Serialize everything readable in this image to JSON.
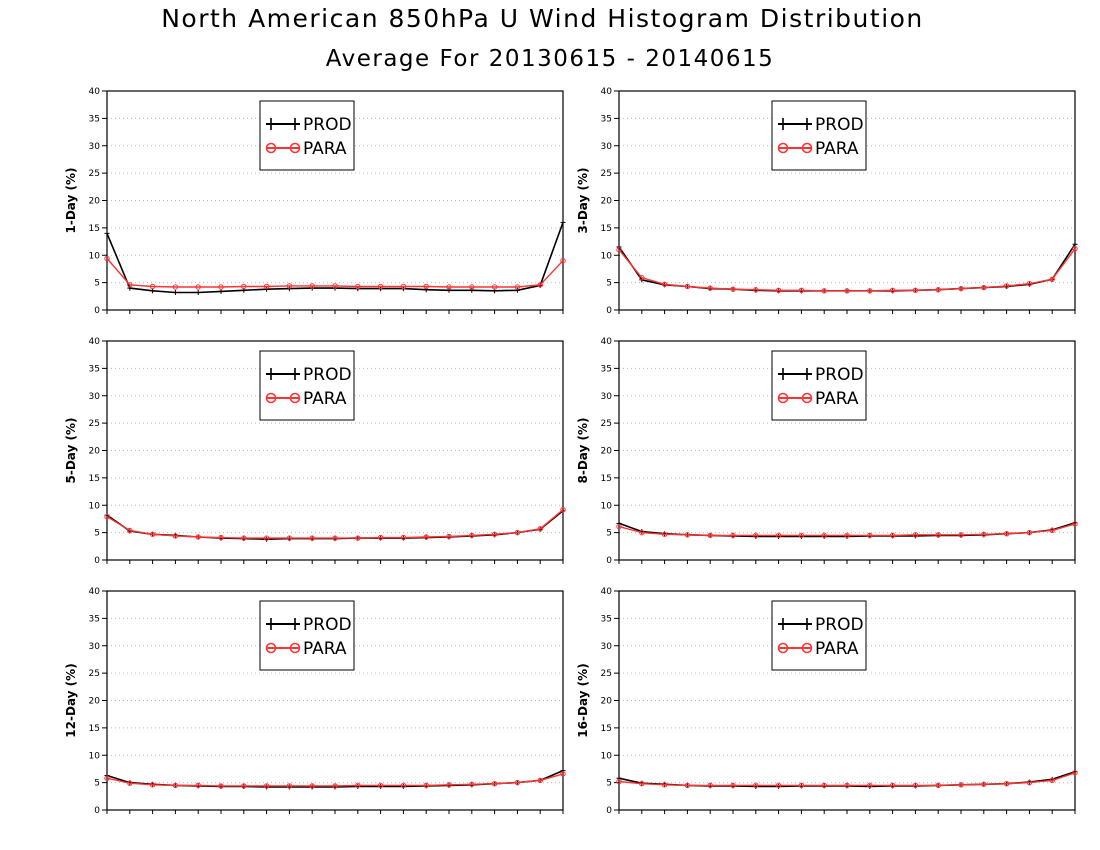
{
  "title": "North American 850hPa U Wind Histogram Distribution",
  "subtitle": "Average For 20130615 - 20140615",
  "colors": {
    "prod": "#000000",
    "para": "#ff3333",
    "grid": "#bbbbbb"
  },
  "chart_data": [
    {
      "type": "line",
      "ylabel": "1-Day (%)",
      "ylim": [
        0,
        40
      ],
      "yticks": [
        0,
        5,
        10,
        15,
        20,
        25,
        30,
        35,
        40
      ],
      "grid": true,
      "legend": "top-center",
      "x": [
        1,
        2,
        3,
        4,
        5,
        6,
        7,
        8,
        9,
        10,
        11,
        12,
        13,
        14,
        15,
        16,
        17,
        18,
        19,
        20,
        21
      ],
      "series": [
        {
          "name": "PROD",
          "marker": "plus",
          "values": [
            14.0,
            4.0,
            3.5,
            3.2,
            3.2,
            3.4,
            3.6,
            3.8,
            3.9,
            4.0,
            4.0,
            3.9,
            3.9,
            3.9,
            3.7,
            3.6,
            3.6,
            3.5,
            3.6,
            4.5,
            16.0
          ]
        },
        {
          "name": "PARA",
          "marker": "circle",
          "values": [
            9.4,
            4.6,
            4.3,
            4.2,
            4.2,
            4.2,
            4.3,
            4.3,
            4.4,
            4.4,
            4.4,
            4.3,
            4.3,
            4.3,
            4.3,
            4.2,
            4.2,
            4.2,
            4.2,
            4.6,
            9.0
          ]
        }
      ]
    },
    {
      "type": "line",
      "ylabel": "3-Day (%)",
      "ylim": [
        0,
        40
      ],
      "yticks": [
        0,
        5,
        10,
        15,
        20,
        25,
        30,
        35,
        40
      ],
      "grid": true,
      "legend": "top-center",
      "x": [
        1,
        2,
        3,
        4,
        5,
        6,
        7,
        8,
        9,
        10,
        11,
        12,
        13,
        14,
        15,
        16,
        17,
        18,
        19,
        20,
        21
      ],
      "series": [
        {
          "name": "PROD",
          "marker": "plus",
          "values": [
            11.5,
            5.5,
            4.6,
            4.3,
            3.9,
            3.8,
            3.6,
            3.5,
            3.5,
            3.5,
            3.5,
            3.5,
            3.5,
            3.6,
            3.7,
            3.9,
            4.1,
            4.3,
            4.7,
            5.6,
            12.0
          ]
        },
        {
          "name": "PARA",
          "marker": "circle",
          "values": [
            11.0,
            5.9,
            4.7,
            4.3,
            4.0,
            3.8,
            3.7,
            3.6,
            3.6,
            3.5,
            3.5,
            3.5,
            3.6,
            3.6,
            3.7,
            3.9,
            4.1,
            4.4,
            4.8,
            5.6,
            11.2
          ]
        }
      ]
    },
    {
      "type": "line",
      "ylabel": "5-Day (%)",
      "ylim": [
        0,
        40
      ],
      "yticks": [
        0,
        5,
        10,
        15,
        20,
        25,
        30,
        35,
        40
      ],
      "grid": true,
      "legend": "top-center",
      "x": [
        1,
        2,
        3,
        4,
        5,
        6,
        7,
        8,
        9,
        10,
        11,
        12,
        13,
        14,
        15,
        16,
        17,
        18,
        19,
        20,
        21
      ],
      "series": [
        {
          "name": "PROD",
          "marker": "plus",
          "values": [
            8.2,
            5.3,
            4.7,
            4.5,
            4.2,
            4.0,
            3.9,
            3.8,
            3.9,
            3.9,
            3.9,
            4.0,
            4.0,
            4.0,
            4.1,
            4.2,
            4.4,
            4.6,
            5.0,
            5.6,
            9.0
          ]
        },
        {
          "name": "PARA",
          "marker": "circle",
          "values": [
            7.9,
            5.4,
            4.7,
            4.4,
            4.2,
            4.1,
            4.0,
            4.0,
            4.0,
            4.0,
            4.0,
            4.0,
            4.1,
            4.1,
            4.2,
            4.3,
            4.5,
            4.7,
            5.0,
            5.7,
            9.2
          ]
        }
      ]
    },
    {
      "type": "line",
      "ylabel": "8-Day (%)",
      "ylim": [
        0,
        40
      ],
      "yticks": [
        0,
        5,
        10,
        15,
        20,
        25,
        30,
        35,
        40
      ],
      "grid": true,
      "legend": "top-center",
      "x": [
        1,
        2,
        3,
        4,
        5,
        6,
        7,
        8,
        9,
        10,
        11,
        12,
        13,
        14,
        15,
        16,
        17,
        18,
        19,
        20,
        21
      ],
      "series": [
        {
          "name": "PROD",
          "marker": "plus",
          "values": [
            6.7,
            5.2,
            4.8,
            4.6,
            4.5,
            4.4,
            4.3,
            4.3,
            4.3,
            4.3,
            4.3,
            4.4,
            4.4,
            4.4,
            4.5,
            4.5,
            4.6,
            4.8,
            5.0,
            5.5,
            6.8
          ]
        },
        {
          "name": "PARA",
          "marker": "circle",
          "values": [
            6.1,
            5.0,
            4.7,
            4.6,
            4.5,
            4.5,
            4.5,
            4.5,
            4.5,
            4.5,
            4.5,
            4.5,
            4.5,
            4.6,
            4.6,
            4.6,
            4.7,
            4.8,
            5.0,
            5.4,
            6.6
          ]
        }
      ]
    },
    {
      "type": "line",
      "ylabel": "12-Day (%)",
      "ylim": [
        0,
        40
      ],
      "yticks": [
        0,
        5,
        10,
        15,
        20,
        25,
        30,
        35,
        40
      ],
      "grid": true,
      "legend": "top-center",
      "x": [
        1,
        2,
        3,
        4,
        5,
        6,
        7,
        8,
        9,
        10,
        11,
        12,
        13,
        14,
        15,
        16,
        17,
        18,
        19,
        20,
        21
      ],
      "series": [
        {
          "name": "PROD",
          "marker": "plus",
          "values": [
            6.3,
            5.0,
            4.7,
            4.5,
            4.4,
            4.3,
            4.3,
            4.2,
            4.2,
            4.2,
            4.2,
            4.3,
            4.3,
            4.3,
            4.4,
            4.5,
            4.6,
            4.8,
            5.0,
            5.4,
            7.2
          ]
        },
        {
          "name": "PARA",
          "marker": "circle",
          "values": [
            5.8,
            4.9,
            4.6,
            4.5,
            4.5,
            4.4,
            4.4,
            4.4,
            4.4,
            4.4,
            4.4,
            4.5,
            4.5,
            4.5,
            4.5,
            4.6,
            4.7,
            4.8,
            5.0,
            5.4,
            6.6
          ]
        }
      ]
    },
    {
      "type": "line",
      "ylabel": "16-Day (%)",
      "ylim": [
        0,
        40
      ],
      "yticks": [
        0,
        5,
        10,
        15,
        20,
        25,
        30,
        35,
        40
      ],
      "grid": true,
      "legend": "top-center",
      "x": [
        1,
        2,
        3,
        4,
        5,
        6,
        7,
        8,
        9,
        10,
        11,
        12,
        13,
        14,
        15,
        16,
        17,
        18,
        19,
        20,
        21
      ],
      "series": [
        {
          "name": "PROD",
          "marker": "plus",
          "values": [
            5.8,
            4.9,
            4.7,
            4.5,
            4.4,
            4.4,
            4.3,
            4.3,
            4.4,
            4.4,
            4.4,
            4.3,
            4.4,
            4.4,
            4.5,
            4.6,
            4.7,
            4.8,
            5.1,
            5.6,
            7.0
          ]
        },
        {
          "name": "PARA",
          "marker": "circle",
          "values": [
            5.2,
            4.8,
            4.6,
            4.5,
            4.5,
            4.5,
            4.5,
            4.5,
            4.5,
            4.5,
            4.5,
            4.5,
            4.5,
            4.5,
            4.5,
            4.6,
            4.7,
            4.8,
            5.0,
            5.4,
            6.8
          ]
        }
      ]
    }
  ]
}
